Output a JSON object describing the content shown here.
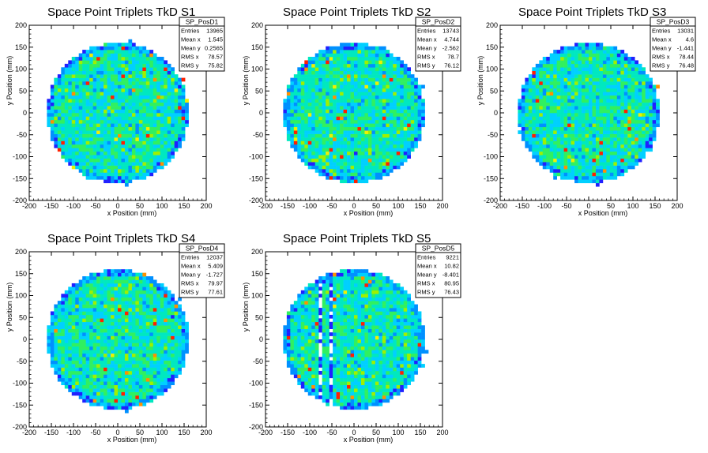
{
  "chart_data": [
    {
      "type": "heatmap",
      "title": "Space Point Triplets TkD S1",
      "xlabel": "x Position (mm)",
      "ylabel": "y Position (mm)",
      "xlim": [
        -200,
        200
      ],
      "ylim": [
        -200,
        200
      ],
      "xticks": [
        -200,
        -150,
        -100,
        -50,
        0,
        50,
        100,
        150,
        200
      ],
      "yticks": [
        -200,
        -150,
        -100,
        -50,
        0,
        50,
        100,
        150,
        200
      ],
      "stats": {
        "name": "SP_PosD1",
        "rows": [
          {
            "label": "Entries",
            "value": "13965"
          },
          {
            "label": "Mean x",
            "value": "1.545"
          },
          {
            "label": "Mean y",
            "value": "0.2565"
          },
          {
            "label": "RMS x",
            "value": "78.57"
          },
          {
            "label": "RMS y",
            "value": "75.82"
          }
        ]
      },
      "entries": 13965,
      "mean_x": 1.545,
      "mean_y": 0.2565,
      "rms_x": 78.57,
      "rms_y": 75.82,
      "region": {
        "shape": "disk",
        "radius": 160
      }
    },
    {
      "type": "heatmap",
      "title": "Space Point Triplets TkD S2",
      "xlabel": "x Position (mm)",
      "ylabel": "y Position (mm)",
      "xlim": [
        -200,
        200
      ],
      "ylim": [
        -200,
        200
      ],
      "xticks": [
        -200,
        -150,
        -100,
        -50,
        0,
        50,
        100,
        150,
        200
      ],
      "yticks": [
        -200,
        -150,
        -100,
        -50,
        0,
        50,
        100,
        150,
        200
      ],
      "stats": {
        "name": "SP_PosD2",
        "rows": [
          {
            "label": "Entries",
            "value": "13743"
          },
          {
            "label": "Mean x",
            "value": "4.744"
          },
          {
            "label": "Mean y",
            "value": "-2.562"
          },
          {
            "label": "RMS x",
            "value": "78.7"
          },
          {
            "label": "RMS y",
            "value": "76.12"
          }
        ]
      },
      "entries": 13743,
      "mean_x": 4.744,
      "mean_y": -2.562,
      "rms_x": 78.7,
      "rms_y": 76.12,
      "region": {
        "shape": "disk",
        "radius": 160
      }
    },
    {
      "type": "heatmap",
      "title": "Space Point Triplets TkD S3",
      "xlabel": "x Position (mm)",
      "ylabel": "y Position (mm)",
      "xlim": [
        -200,
        200
      ],
      "ylim": [
        -200,
        200
      ],
      "xticks": [
        -200,
        -150,
        -100,
        -50,
        0,
        50,
        100,
        150,
        200
      ],
      "yticks": [
        -200,
        -150,
        -100,
        -50,
        0,
        50,
        100,
        150,
        200
      ],
      "stats": {
        "name": "SP_PosD3",
        "rows": [
          {
            "label": "Entries",
            "value": "13031"
          },
          {
            "label": "Mean x",
            "value": "4.6"
          },
          {
            "label": "Mean y",
            "value": "-1.441"
          },
          {
            "label": "RMS x",
            "value": "78.44"
          },
          {
            "label": "RMS y",
            "value": "76.48"
          }
        ]
      },
      "entries": 13031,
      "mean_x": 4.6,
      "mean_y": -1.441,
      "rms_x": 78.44,
      "rms_y": 76.48,
      "region": {
        "shape": "disk",
        "radius": 160
      }
    },
    {
      "type": "heatmap",
      "title": "Space Point Triplets TkD S4",
      "xlabel": "x Position (mm)",
      "ylabel": "y Position (mm)",
      "xlim": [
        -200,
        200
      ],
      "ylim": [
        -200,
        200
      ],
      "xticks": [
        -200,
        -150,
        -100,
        -50,
        0,
        50,
        100,
        150,
        200
      ],
      "yticks": [
        -200,
        -150,
        -100,
        -50,
        0,
        50,
        100,
        150,
        200
      ],
      "stats": {
        "name": "SP_PosD4",
        "rows": [
          {
            "label": "Entries",
            "value": "12037"
          },
          {
            "label": "Mean x",
            "value": "5.409"
          },
          {
            "label": "Mean y",
            "value": "-1.727"
          },
          {
            "label": "RMS x",
            "value": "79.97"
          },
          {
            "label": "RMS y",
            "value": "77.61"
          }
        ]
      },
      "entries": 12037,
      "mean_x": 5.409,
      "mean_y": -1.727,
      "rms_x": 79.97,
      "rms_y": 77.61,
      "region": {
        "shape": "disk",
        "radius": 160
      }
    },
    {
      "type": "heatmap",
      "title": "Space Point Triplets TkD S5",
      "xlabel": "x Position (mm)",
      "ylabel": "y Position (mm)",
      "xlim": [
        -200,
        200
      ],
      "ylim": [
        -200,
        200
      ],
      "xticks": [
        -200,
        -150,
        -100,
        -50,
        0,
        50,
        100,
        150,
        200
      ],
      "yticks": [
        -200,
        -150,
        -100,
        -50,
        0,
        50,
        100,
        150,
        200
      ],
      "stats": {
        "name": "SP_PosD5",
        "rows": [
          {
            "label": "Entries",
            "value": "9221"
          },
          {
            "label": "Mean x",
            "value": "10.82"
          },
          {
            "label": "Mean y",
            "value": "-8.401"
          },
          {
            "label": "RMS x",
            "value": "80.95"
          },
          {
            "label": "RMS y",
            "value": "76.43"
          }
        ]
      },
      "entries": 9221,
      "mean_x": 10.82,
      "mean_y": -8.401,
      "rms_x": 80.95,
      "rms_y": 76.43,
      "region": {
        "shape": "disk",
        "radius": 160
      },
      "dead_channels_x": [
        -75,
        -50
      ]
    }
  ],
  "colors": {
    "palette": [
      "#2020ff",
      "#0090ff",
      "#00d0ff",
      "#00e8c0",
      "#30f060",
      "#a0f000",
      "#f0f000",
      "#ff9000",
      "#ff2000"
    ],
    "frame": "#000000",
    "background": "#ffffff"
  }
}
